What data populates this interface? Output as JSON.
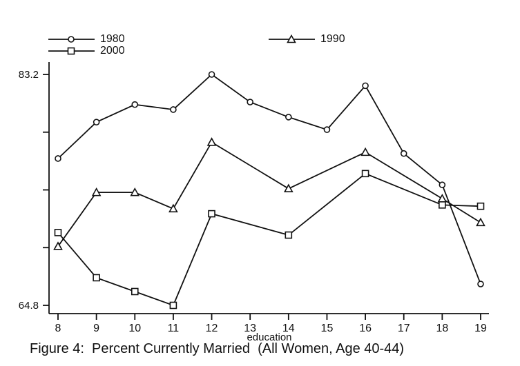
{
  "figure": {
    "caption": "Figure 4:  Percent Currently Married  (All Women, Age 40-44)"
  },
  "chart_data": {
    "type": "line",
    "title": "Figure 4:  Percent Currently Married  (All Women, Age 40-44)",
    "xlabel": "education",
    "ylabel": "",
    "xlim": [
      8,
      19
    ],
    "ylim": [
      64.8,
      83.2
    ],
    "x_ticks": [
      8,
      9,
      10,
      11,
      12,
      13,
      14,
      15,
      16,
      17,
      18,
      19
    ],
    "y_ticks": [
      64.8,
      69.4,
      74.0,
      78.6,
      83.2
    ],
    "y_axis_labels": [
      {
        "value": 83.2,
        "text": "83.2"
      },
      {
        "value": 64.8,
        "text": "64.8"
      }
    ],
    "grid": false,
    "line_color": "#111111",
    "marker_fill": "#ffffff",
    "legend": {
      "position": "top-left and top-center, no frame",
      "entries": [
        "1980",
        "2000",
        "1990"
      ]
    },
    "series": [
      {
        "name": "1980",
        "marker": "circle",
        "x": [
          8,
          9,
          10,
          11,
          12,
          13,
          14,
          15,
          16,
          17,
          18,
          19
        ],
        "y": [
          76.5,
          79.4,
          80.8,
          80.4,
          83.2,
          81.0,
          79.8,
          78.8,
          82.3,
          76.9,
          74.4,
          66.5
        ]
      },
      {
        "name": "1990",
        "marker": "triangle",
        "x": [
          8,
          9,
          10,
          11,
          12,
          14,
          16,
          18,
          19
        ],
        "y": [
          69.5,
          73.8,
          73.8,
          72.5,
          77.8,
          74.1,
          77.0,
          73.3,
          71.4
        ]
      },
      {
        "name": "2000",
        "marker": "square",
        "x": [
          8,
          9,
          10,
          11,
          12,
          14,
          16,
          18,
          19
        ],
        "y": [
          70.6,
          67.0,
          65.9,
          64.8,
          72.1,
          70.4,
          75.3,
          72.8,
          72.7
        ]
      }
    ]
  }
}
